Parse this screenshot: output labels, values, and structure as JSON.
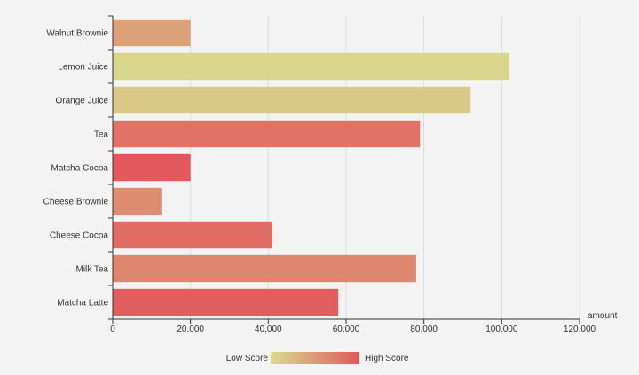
{
  "chart_data": {
    "type": "bar",
    "orientation": "horizontal",
    "categories": [
      "Walnut Brownie",
      "Lemon Juice",
      "Orange Juice",
      "Tea",
      "Matcha Cocoa",
      "Cheese Brownie",
      "Cheese Cocoa",
      "Milk Tea",
      "Matcha Latte"
    ],
    "values": [
      20000,
      102000,
      92000,
      79000,
      20000,
      12500,
      41000,
      78000,
      58000
    ],
    "scores": [
      0.45,
      0.05,
      0.15,
      0.8,
      1.0,
      0.6,
      0.85,
      0.65,
      0.95
    ],
    "xlabel": "amount",
    "xlim": [
      0,
      120000
    ],
    "xticks": [
      "0",
      "20,000",
      "40,000",
      "60,000",
      "80,000",
      "100,000",
      "120,000"
    ],
    "grid": "vertical",
    "colors": {
      "low": "#d8dc8e",
      "high": "#e2585c"
    }
  },
  "legend": {
    "low_label": "Low Score",
    "high_label": "High Score",
    "placement": "bottom-center"
  }
}
